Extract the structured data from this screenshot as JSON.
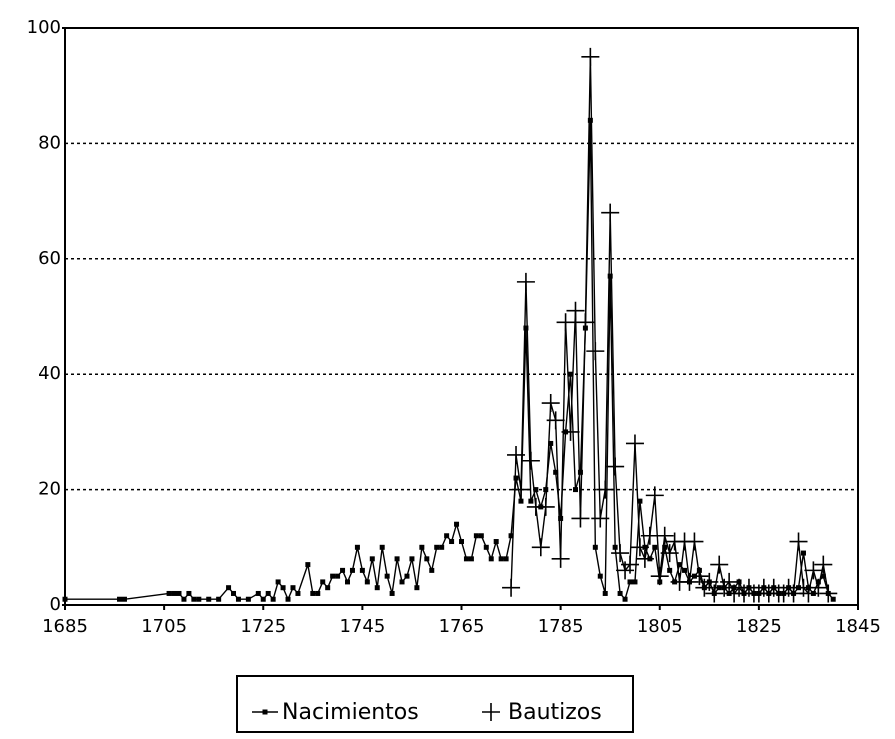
{
  "chart_data": {
    "type": "line",
    "xlim": [
      1685,
      1845
    ],
    "xticks": [
      1685,
      1705,
      1725,
      1745,
      1765,
      1785,
      1805,
      1825,
      1845
    ],
    "ylim": [
      0,
      100
    ],
    "yticks": [
      0,
      20,
      40,
      60,
      80,
      100
    ],
    "grid": true,
    "legend": "bottom",
    "series": [
      {
        "name": "Nacimientos",
        "color": "#000000",
        "marker": "square",
        "x": [
          1685,
          1696,
          1697,
          1706,
          1707,
          1708,
          1709,
          1710,
          1711,
          1712,
          1714,
          1716,
          1718,
          1719,
          1720,
          1722,
          1724,
          1725,
          1726,
          1727,
          1728,
          1729,
          1730,
          1731,
          1732,
          1734,
          1735,
          1736,
          1737,
          1738,
          1739,
          1740,
          1741,
          1742,
          1743,
          1744,
          1745,
          1746,
          1747,
          1748,
          1749,
          1750,
          1751,
          1752,
          1753,
          1754,
          1755,
          1756,
          1757,
          1758,
          1759,
          1760,
          1761,
          1762,
          1763,
          1764,
          1765,
          1766,
          1767,
          1768,
          1769,
          1770,
          1771,
          1772,
          1773,
          1774,
          1775,
          1776,
          1777,
          1778,
          1779,
          1780,
          1781,
          1782,
          1783,
          1784,
          1785,
          1786,
          1787,
          1788,
          1789,
          1790,
          1791,
          1792,
          1793,
          1794,
          1795,
          1796,
          1797,
          1798,
          1799,
          1800,
          1801,
          1802,
          1803,
          1804,
          1805,
          1806,
          1807,
          1808,
          1809,
          1810,
          1811,
          1812,
          1813,
          1814,
          1815,
          1816,
          1817,
          1818,
          1819,
          1820,
          1821,
          1822,
          1823,
          1824,
          1825,
          1826,
          1827,
          1828,
          1829,
          1830,
          1831,
          1832,
          1833,
          1834,
          1835,
          1836,
          1837,
          1838,
          1839,
          1840
        ],
        "values": [
          1,
          1,
          1,
          2,
          2,
          2,
          1,
          2,
          1,
          1,
          1,
          1,
          3,
          2,
          1,
          1,
          2,
          1,
          2,
          1,
          4,
          3,
          1,
          3,
          2,
          7,
          2,
          2,
          4,
          3,
          5,
          5,
          6,
          4,
          6,
          10,
          6,
          4,
          8,
          3,
          10,
          5,
          2,
          8,
          4,
          5,
          8,
          3,
          10,
          8,
          6,
          10,
          10,
          12,
          11,
          14,
          11,
          8,
          8,
          12,
          12,
          10,
          8,
          11,
          8,
          8,
          12,
          22,
          18,
          48,
          18,
          20,
          17,
          20,
          28,
          23,
          15,
          30,
          40,
          20,
          23,
          48,
          84,
          10,
          5,
          2,
          57,
          10,
          2,
          1,
          4,
          4,
          18,
          10,
          8,
          10,
          4,
          10,
          6,
          4,
          7,
          6,
          4,
          5,
          6,
          3,
          4,
          2,
          3,
          3,
          2,
          3,
          4,
          2,
          3,
          2,
          2,
          3,
          2,
          3,
          2,
          2,
          3,
          2,
          3,
          9,
          3,
          2,
          4,
          5,
          2,
          1
        ]
      },
      {
        "name": "Bautizos",
        "color": "#000000",
        "marker": "plus",
        "x": [
          1775,
          1776,
          1777,
          1778,
          1779,
          1780,
          1781,
          1782,
          1783,
          1784,
          1785,
          1786,
          1787,
          1788,
          1789,
          1790,
          1791,
          1792,
          1793,
          1794,
          1795,
          1796,
          1797,
          1798,
          1799,
          1800,
          1801,
          1802,
          1803,
          1804,
          1805,
          1806,
          1807,
          1808,
          1809,
          1810,
          1811,
          1812,
          1813,
          1814,
          1815,
          1816,
          1817,
          1818,
          1819,
          1820,
          1821,
          1822,
          1823,
          1824,
          1825,
          1826,
          1827,
          1828,
          1829,
          1830,
          1831,
          1832,
          1833,
          1834,
          1835,
          1836,
          1837,
          1838,
          1839
        ],
        "values": [
          3,
          26,
          20,
          56,
          25,
          17,
          10,
          17,
          35,
          32,
          8,
          49,
          30,
          51,
          15,
          49,
          95,
          44,
          15,
          20,
          68,
          24,
          9,
          6,
          7,
          28,
          10,
          8,
          12,
          19,
          5,
          12,
          9,
          11,
          4,
          11,
          4,
          11,
          5,
          3,
          4,
          2,
          7,
          3,
          4,
          2,
          3,
          2,
          3,
          2,
          2,
          3,
          2,
          3,
          2,
          2,
          3,
          2,
          11,
          3,
          2,
          6,
          3,
          7,
          2
        ]
      }
    ]
  }
}
